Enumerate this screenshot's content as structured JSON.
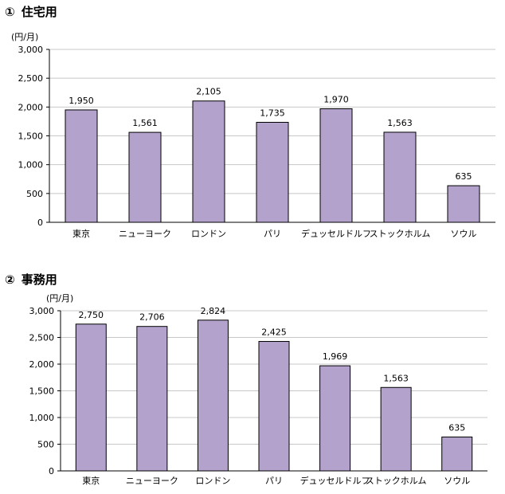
{
  "sections": [
    {
      "number": "①",
      "title": "住宅用",
      "unit": "(円/月)"
    },
    {
      "number": "②",
      "title": "事務用",
      "unit": "(円/月)"
    }
  ],
  "chart_data": [
    {
      "type": "bar",
      "title": "住宅用",
      "unit_label": "(円/月)",
      "categories": [
        "東京",
        "ニューヨーク",
        "ロンドン",
        "パリ",
        "デュッセルドルフ",
        "ストックホルム",
        "ソウル"
      ],
      "values": [
        1950,
        1561,
        2105,
        1735,
        1970,
        1563,
        635
      ],
      "value_labels": [
        "1,950",
        "1,561",
        "2,105",
        "1,735",
        "1,970",
        "1,563",
        "635"
      ],
      "yticks": [
        "0",
        "500",
        "1,000",
        "1,500",
        "2,000",
        "2,500",
        "3,000"
      ],
      "ylim": [
        0,
        3000
      ],
      "grid": true,
      "bar_color": "#b3a2cc",
      "bar_stroke": "#000000"
    },
    {
      "type": "bar",
      "title": "事務用",
      "unit_label": "(円/月)",
      "categories": [
        "東京",
        "ニューヨーク",
        "ロンドン",
        "パリ",
        "デュッセルドルフ",
        "ストックホルム",
        "ソウル"
      ],
      "values": [
        2750,
        2706,
        2824,
        2425,
        1969,
        1563,
        635
      ],
      "value_labels": [
        "2,750",
        "2,706",
        "2,824",
        "2,425",
        "1,969",
        "1,563",
        "635"
      ],
      "yticks": [
        "0",
        "500",
        "1,000",
        "1,500",
        "2,000",
        "2,500",
        "3,000"
      ],
      "ylim": [
        0,
        3000
      ],
      "grid": true,
      "bar_color": "#b3a2cc",
      "bar_stroke": "#000000"
    }
  ]
}
